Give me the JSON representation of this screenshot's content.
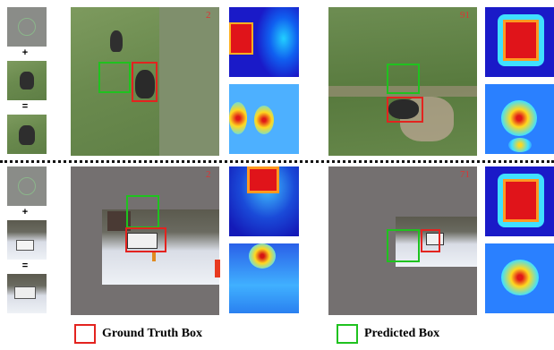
{
  "rows": [
    {
      "operators": {
        "plus": "+",
        "equals": "="
      },
      "panels": [
        {
          "frame_number": "2"
        },
        {
          "frame_number": "91"
        }
      ]
    },
    {
      "operators": {
        "plus": "+",
        "equals": "="
      },
      "panels": [
        {
          "frame_number": "2"
        },
        {
          "frame_number": "71"
        }
      ]
    }
  ],
  "legend": {
    "ground_truth_label": "Ground Truth Box",
    "predicted_label": "Predicted Box",
    "ground_truth_color": "#e3231f",
    "predicted_color": "#1fc21f"
  }
}
